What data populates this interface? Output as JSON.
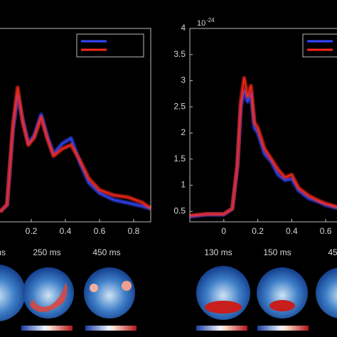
{
  "chart_data": [
    {
      "type": "line",
      "x": [
        0.017,
        0.058,
        0.092,
        0.12,
        0.15,
        0.183,
        0.217,
        0.258,
        0.292,
        0.33,
        0.383,
        0.433,
        0.483,
        0.537,
        0.6,
        0.683,
        0.767,
        0.85,
        0.9
      ],
      "series": [
        {
          "color": "#3348ff",
          "values": [
            0.5,
            0.62,
            2.05,
            2.72,
            2.25,
            1.8,
            1.95,
            2.35,
            1.95,
            1.6,
            1.8,
            1.9,
            1.45,
            1.05,
            0.85,
            0.72,
            0.66,
            0.6,
            0.55
          ]
        },
        {
          "color": "#ff2a1a",
          "values": [
            0.49,
            0.63,
            2.13,
            2.87,
            2.2,
            1.77,
            1.91,
            2.3,
            1.91,
            1.56,
            1.7,
            1.77,
            1.49,
            1.13,
            0.91,
            0.81,
            0.77,
            0.67,
            0.56
          ]
        }
      ],
      "xlim": [
        -0.2,
        0.9
      ],
      "ylim": [
        0.3,
        4
      ],
      "xticks": [
        0.2,
        0.4,
        0.6,
        0.8
      ]
    },
    {
      "type": "line",
      "y_scale_label": "10",
      "y_scale_exponent": "-24",
      "x": [
        -0.2,
        -0.1,
        0,
        0.05,
        0.08,
        0.1,
        0.12,
        0.14,
        0.16,
        0.18,
        0.2,
        0.24,
        0.28,
        0.32,
        0.36,
        0.4,
        0.44,
        0.5,
        0.56,
        0.6,
        0.65,
        0.7
      ],
      "series": [
        {
          "color": "#3348ff",
          "values": [
            0.4,
            0.44,
            0.44,
            0.55,
            1.35,
            2.5,
            2.8,
            2.6,
            2.75,
            2.1,
            2.0,
            1.6,
            1.45,
            1.2,
            1.1,
            1.12,
            0.9,
            0.75,
            0.68,
            0.62,
            0.58,
            0.55
          ]
        },
        {
          "color": "#ff2a1a",
          "values": [
            0.42,
            0.45,
            0.45,
            0.55,
            1.4,
            2.6,
            3.05,
            2.7,
            2.9,
            2.2,
            2.1,
            1.7,
            1.5,
            1.3,
            1.15,
            1.2,
            0.95,
            0.8,
            0.7,
            0.65,
            0.6,
            0.55
          ]
        }
      ],
      "xlim": [
        -0.2,
        0.7
      ],
      "ylim": [
        0.3,
        4
      ],
      "xticks": [
        0,
        0.2,
        0.4,
        0.6
      ],
      "yticks": [
        0.5,
        1,
        1.5,
        2,
        2.5,
        3,
        3.5,
        4
      ]
    }
  ],
  "topomaps": {
    "labels": [
      "ms",
      "250 ms",
      "450 ms",
      "130 ms",
      "150 ms",
      "45"
    ]
  }
}
